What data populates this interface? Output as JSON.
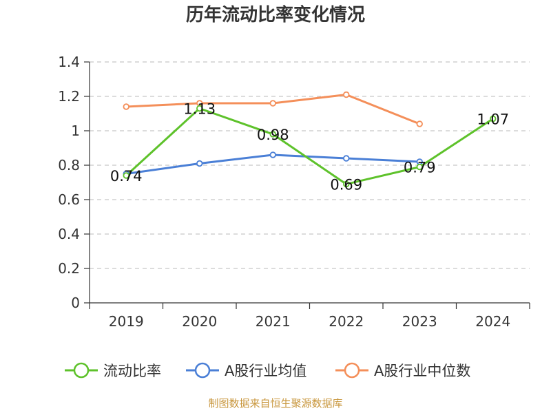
{
  "chart_data": {
    "type": "line",
    "title": "历年流动比率变化情况",
    "categories": [
      "2019",
      "2020",
      "2021",
      "2022",
      "2023",
      "2024"
    ],
    "ylim": [
      0,
      1.4
    ],
    "yticks": [
      "0",
      "0.2",
      "0.4",
      "0.6",
      "0.8",
      "1",
      "1.2",
      "1.4"
    ],
    "grid": true,
    "legend_position": "bottom",
    "series": [
      {
        "name": "流动比率",
        "color": "#5ec22b",
        "values": [
          0.74,
          1.13,
          0.98,
          0.69,
          0.79,
          1.07
        ],
        "labels": [
          "0.74",
          "1.13",
          "0.98",
          "0.69",
          "0.79",
          "1.07"
        ]
      },
      {
        "name": "A股行业均值",
        "color": "#4a7fd6",
        "values": [
          0.75,
          0.81,
          0.86,
          0.84,
          0.82,
          null
        ]
      },
      {
        "name": "A股行业中位数",
        "color": "#f48f5a",
        "values": [
          1.14,
          1.16,
          1.16,
          1.21,
          1.04,
          null
        ]
      }
    ]
  },
  "source_note": "制图数据来自恒生聚源数据库"
}
